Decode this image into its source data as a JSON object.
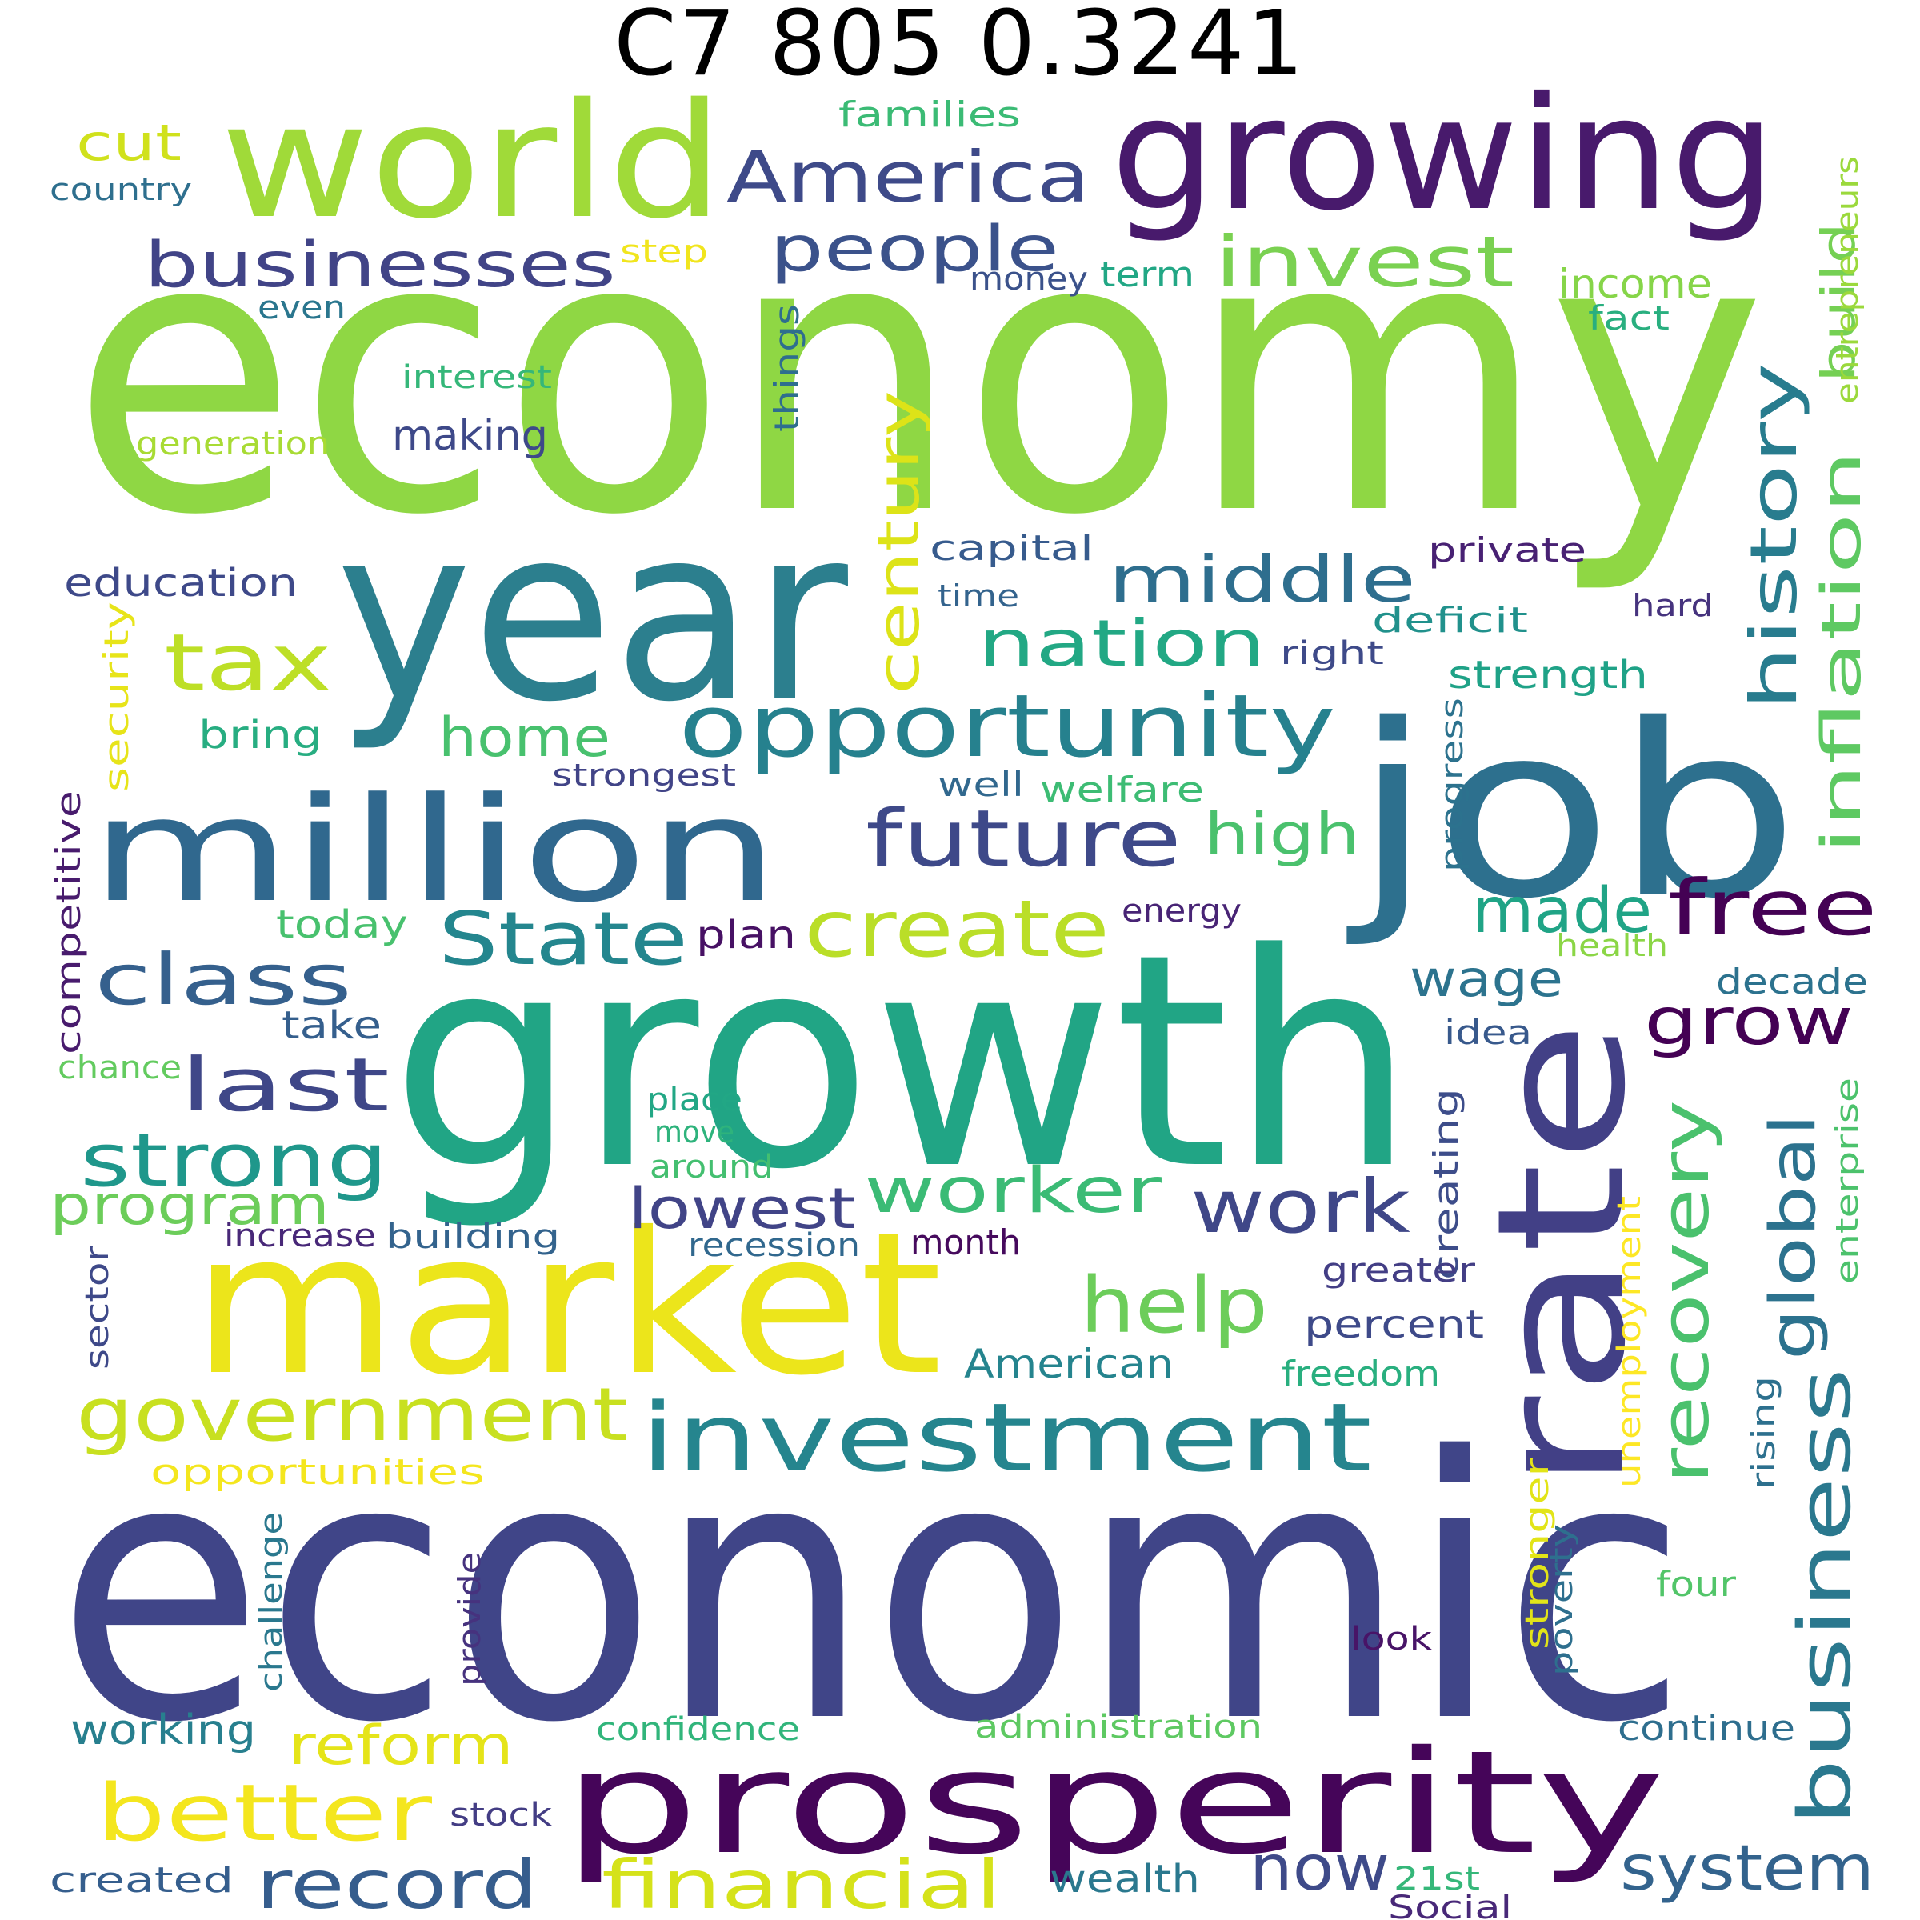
{
  "title": "C7 805 0.3241",
  "palette": [
    "#440154",
    "#472d7b",
    "#3b528b",
    "#2c728e",
    "#21918c",
    "#28ae80",
    "#5ec962",
    "#addc30",
    "#fde725"
  ],
  "words": [
    {
      "text": "economy",
      "color": "#8fd744"
    },
    {
      "text": "economic",
      "color": "#404588"
    },
    {
      "text": "growth",
      "color": "#21a585"
    },
    {
      "text": "year",
      "color": "#2c7f8e"
    },
    {
      "text": "job",
      "color": "#2d708e"
    },
    {
      "text": "market",
      "color": "#ece51b"
    },
    {
      "text": "growing",
      "color": "#481a6c"
    },
    {
      "text": "world",
      "color": "#a0da39"
    },
    {
      "text": "million",
      "color": "#30688e"
    },
    {
      "text": "rate",
      "color": "#424086"
    },
    {
      "text": "prosperity",
      "color": "#450559"
    },
    {
      "text": "investment",
      "color": "#25858e"
    },
    {
      "text": "opportunity",
      "color": "#26818e"
    },
    {
      "text": "government",
      "color": "#c8e020"
    },
    {
      "text": "America",
      "color": "#3e4a89"
    },
    {
      "text": "businesses",
      "color": "#414487"
    },
    {
      "text": "people",
      "color": "#3b528b"
    },
    {
      "text": "invest",
      "color": "#7ad151"
    },
    {
      "text": "future",
      "color": "#3e4989"
    },
    {
      "text": "middle",
      "color": "#2e6e8e"
    },
    {
      "text": "nation",
      "color": "#22a884"
    },
    {
      "text": "tax",
      "color": "#bddf26"
    },
    {
      "text": "history",
      "color": "#287c8e"
    },
    {
      "text": "inflation",
      "color": "#5ec962"
    },
    {
      "text": "century",
      "color": "#dde318"
    },
    {
      "text": "build",
      "color": "#75d054"
    },
    {
      "text": "free",
      "color": "#440154"
    },
    {
      "text": "create",
      "color": "#bade28"
    },
    {
      "text": "class",
      "color": "#35608d"
    },
    {
      "text": "State",
      "color": "#24868e"
    },
    {
      "text": "last",
      "color": "#3f4788"
    },
    {
      "text": "strong",
      "color": "#1f978b"
    },
    {
      "text": "program",
      "color": "#6ccd5a"
    },
    {
      "text": "worker",
      "color": "#3bbb75"
    },
    {
      "text": "work",
      "color": "#3f4788"
    },
    {
      "text": "help",
      "color": "#6ccd5a"
    },
    {
      "text": "home",
      "color": "#48c16e"
    },
    {
      "text": "high",
      "color": "#4ac16d"
    },
    {
      "text": "made",
      "color": "#20a486"
    },
    {
      "text": "grow",
      "color": "#440154"
    },
    {
      "text": "recovery",
      "color": "#4ac16d"
    },
    {
      "text": "global",
      "color": "#2c728e"
    },
    {
      "text": "business",
      "color": "#2a788e"
    },
    {
      "text": "wage",
      "color": "#2c738e"
    },
    {
      "text": "lowest",
      "color": "#414487"
    },
    {
      "text": "better",
      "color": "#f4e61e"
    },
    {
      "text": "reform",
      "color": "#e5e419"
    },
    {
      "text": "record",
      "color": "#365d8d"
    },
    {
      "text": "financial",
      "color": "#d5e21a"
    },
    {
      "text": "now",
      "color": "#3e4a89"
    },
    {
      "text": "system",
      "color": "#33638d"
    },
    {
      "text": "cut",
      "color": "#d0e11c"
    },
    {
      "text": "families",
      "color": "#3bbb75"
    },
    {
      "text": "country",
      "color": "#2e6f8e"
    },
    {
      "text": "step",
      "color": "#f1e51d"
    },
    {
      "text": "even",
      "color": "#2a768e"
    },
    {
      "text": "money",
      "color": "#3b528b"
    },
    {
      "text": "term",
      "color": "#22a785"
    },
    {
      "text": "income",
      "color": "#86d549"
    },
    {
      "text": "fact",
      "color": "#29af7f"
    },
    {
      "text": "entrepreneurs",
      "color": "#9bd93c"
    },
    {
      "text": "interest",
      "color": "#35b779"
    },
    {
      "text": "things",
      "color": "#2e6e8e"
    },
    {
      "text": "generation",
      "color": "#a8db34"
    },
    {
      "text": "making",
      "color": "#3e4989"
    },
    {
      "text": "capital",
      "color": "#375b8d"
    },
    {
      "text": "private",
      "color": "#482173"
    },
    {
      "text": "time",
      "color": "#33638d"
    },
    {
      "text": "hard",
      "color": "#46337e"
    },
    {
      "text": "deficit",
      "color": "#21918c"
    },
    {
      "text": "right",
      "color": "#3e4a89"
    },
    {
      "text": "strength",
      "color": "#1fa287"
    },
    {
      "text": "education",
      "color": "#3e4989"
    },
    {
      "text": "security",
      "color": "#e7e419"
    },
    {
      "text": "bring",
      "color": "#27ad81"
    },
    {
      "text": "strongest",
      "color": "#414487"
    },
    {
      "text": "well",
      "color": "#31688e"
    },
    {
      "text": "welfare",
      "color": "#3dbc74"
    },
    {
      "text": "progress",
      "color": "#2c728e"
    },
    {
      "text": "competitive",
      "color": "#481b6d"
    },
    {
      "text": "today",
      "color": "#48c16e"
    },
    {
      "text": "plan",
      "color": "#471164"
    },
    {
      "text": "energy",
      "color": "#482475"
    },
    {
      "text": "health",
      "color": "#8bd646"
    },
    {
      "text": "decade",
      "color": "#2c728e"
    },
    {
      "text": "take",
      "color": "#355f8d"
    },
    {
      "text": "idea",
      "color": "#38598c"
    },
    {
      "text": "chance",
      "color": "#63cb5f"
    },
    {
      "text": "place",
      "color": "#22a785"
    },
    {
      "text": "move",
      "color": "#2eb37c"
    },
    {
      "text": "around",
      "color": "#44bf70"
    },
    {
      "text": "creating",
      "color": "#3d4d8a"
    },
    {
      "text": "enterprise",
      "color": "#4cc26c"
    },
    {
      "text": "increase",
      "color": "#482878"
    },
    {
      "text": "building",
      "color": "#33638d"
    },
    {
      "text": "recession",
      "color": "#31688e"
    },
    {
      "text": "month",
      "color": "#460a5d"
    },
    {
      "text": "greater",
      "color": "#433e85"
    },
    {
      "text": "unemployment",
      "color": "#fde725"
    },
    {
      "text": "sector",
      "color": "#3e4989"
    },
    {
      "text": "percent",
      "color": "#3e4a89"
    },
    {
      "text": "American",
      "color": "#25848e"
    },
    {
      "text": "freedom",
      "color": "#29af7f"
    },
    {
      "text": "rising",
      "color": "#2d708e"
    },
    {
      "text": "opportunities",
      "color": "#f4e61e"
    },
    {
      "text": "stronger",
      "color": "#e2e418"
    },
    {
      "text": "poverty",
      "color": "#2e6f8e"
    },
    {
      "text": "four",
      "color": "#52c569"
    },
    {
      "text": "challenge",
      "color": "#2a788e"
    },
    {
      "text": "provide",
      "color": "#46327e"
    },
    {
      "text": "look",
      "color": "#481467"
    },
    {
      "text": "working",
      "color": "#277f8e"
    },
    {
      "text": "confidence",
      "color": "#31b57b"
    },
    {
      "text": "administration",
      "color": "#5ec962"
    },
    {
      "text": "continue",
      "color": "#2e6e8e"
    },
    {
      "text": "stock",
      "color": "#433d84"
    },
    {
      "text": "created",
      "color": "#355e8d"
    },
    {
      "text": "wealth",
      "color": "#2a788e"
    },
    {
      "text": "21st",
      "color": "#35b779"
    },
    {
      "text": "Social",
      "color": "#482878"
    }
  ]
}
